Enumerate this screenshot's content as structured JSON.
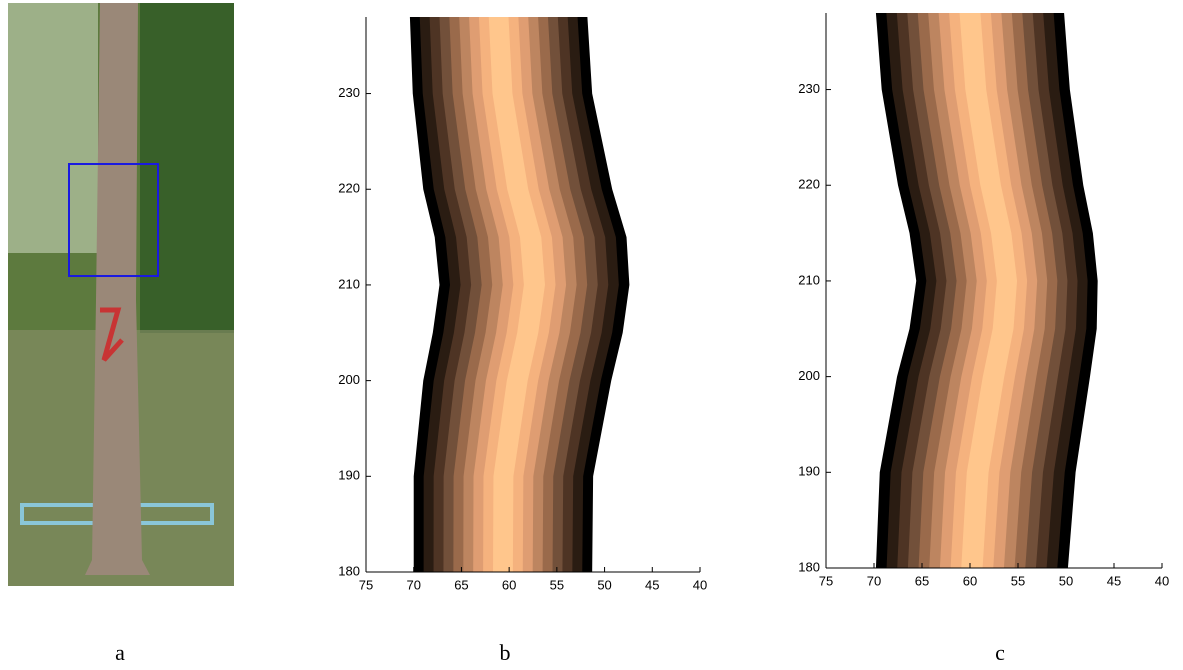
{
  "photo": {
    "caption": "a"
  },
  "chart_data": [
    {
      "type": "band",
      "caption": "b",
      "y": [
        180,
        190,
        200,
        205,
        210,
        215,
        220,
        230,
        238
      ],
      "left": [
        70,
        70,
        69,
        68,
        67.3,
        67.8,
        69,
        70.1,
        70.4
      ],
      "right": [
        51.3,
        51.2,
        49.3,
        48.1,
        47.4,
        47.7,
        49.2,
        51.3,
        51.8
      ],
      "colors": [
        "#000000",
        "#2a1c12",
        "#4e3424",
        "#72503a",
        "#9a6a4b",
        "#bd8560",
        "#df9d72",
        "#f5b27e",
        "#ffc68c"
      ],
      "xlim": [
        75,
        40
      ],
      "ylim": [
        180,
        238
      ],
      "xticks": [
        75,
        70,
        65,
        60,
        55,
        50,
        45,
        40
      ],
      "yticks": [
        180,
        190,
        200,
        210,
        220,
        230
      ]
    },
    {
      "type": "band",
      "caption": "c",
      "y": [
        180,
        190,
        200,
        205,
        210,
        215,
        220,
        230,
        238
      ],
      "left": [
        69.8,
        69.4,
        67.6,
        66.3,
        65.6,
        66.3,
        67.5,
        69.2,
        69.8
      ],
      "right": [
        49.8,
        49,
        47.5,
        46.8,
        46.7,
        47.2,
        48.2,
        49.6,
        50.2
      ],
      "colors": [
        "#000000",
        "#2a1c12",
        "#4e3424",
        "#72503a",
        "#9a6a4b",
        "#bd8560",
        "#df9d72",
        "#f5b27e",
        "#ffc68c"
      ],
      "xlim": [
        75,
        40
      ],
      "ylim": [
        180,
        238
      ],
      "xticks": [
        75,
        70,
        65,
        60,
        55,
        50,
        45,
        40
      ],
      "yticks": [
        180,
        190,
        200,
        210,
        220,
        230
      ]
    }
  ]
}
